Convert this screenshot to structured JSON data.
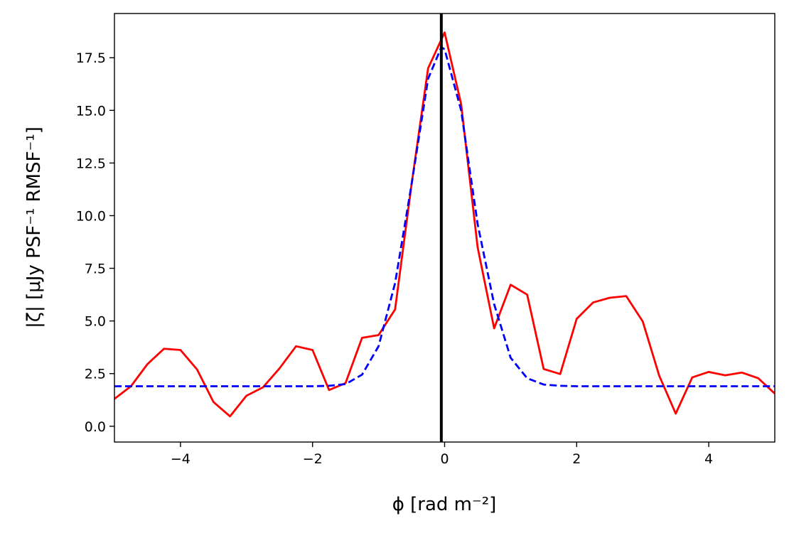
{
  "chart_data": {
    "type": "line",
    "title": "",
    "xlabel": "ϕ [rad m⁻²]",
    "ylabel": "|ζ|  [μJy PSF⁻¹ RMSF⁻¹]",
    "xlim": [
      -5,
      5
    ],
    "ylim": [
      -0.75,
      19.6
    ],
    "grid": false,
    "legend": "none",
    "x_ticks": [
      -4,
      -2,
      0,
      2,
      4
    ],
    "x_tick_labels": [
      "−4",
      "−2",
      "0",
      "2",
      "4"
    ],
    "y_ticks": [
      0,
      2.5,
      5,
      7.5,
      10,
      12.5,
      15,
      17.5
    ],
    "y_tick_labels": [
      "0.0",
      "2.5",
      "5.0",
      "7.5",
      "10.0",
      "12.5",
      "15.0",
      "17.5"
    ],
    "vline": {
      "x": -0.05,
      "color": "#000000"
    },
    "series": [
      {
        "style": "solid",
        "color": "#ff0000",
        "x": [
          -5.0,
          -4.75,
          -4.5,
          -4.25,
          -4.0,
          -3.75,
          -3.5,
          -3.25,
          -3.0,
          -2.75,
          -2.5,
          -2.25,
          -2.0,
          -1.75,
          -1.5,
          -1.25,
          -1.0,
          -0.75,
          -0.5,
          -0.25,
          0.0,
          0.25,
          0.5,
          0.75,
          1.0,
          1.25,
          1.5,
          1.75,
          2.0,
          2.25,
          2.5,
          2.75,
          3.0,
          3.25,
          3.5,
          3.75,
          4.0,
          4.25,
          4.5,
          4.75,
          5.0
        ],
        "y": [
          1.3,
          1.9,
          2.95,
          3.68,
          3.62,
          2.7,
          1.15,
          0.47,
          1.45,
          1.85,
          2.75,
          3.8,
          3.62,
          1.72,
          2.05,
          4.2,
          4.33,
          5.55,
          11.5,
          17.0,
          18.7,
          15.3,
          8.5,
          4.65,
          6.72,
          6.25,
          2.72,
          2.48,
          5.1,
          5.88,
          6.1,
          6.18,
          4.98,
          2.4,
          0.6,
          2.32,
          2.58,
          2.42,
          2.55,
          2.28,
          1.55
        ]
      },
      {
        "style": "dashed",
        "color": "#0000ff",
        "x": [
          -5.0,
          -4.5,
          -4.0,
          -3.5,
          -3.0,
          -2.5,
          -2.0,
          -1.75,
          -1.5,
          -1.25,
          -1.0,
          -0.75,
          -0.5,
          -0.25,
          -0.05,
          0.0,
          0.25,
          0.5,
          0.75,
          1.0,
          1.25,
          1.5,
          1.75,
          2.0,
          2.5,
          3.0,
          3.5,
          4.0,
          4.5,
          5.0
        ],
        "y": [
          1.9,
          1.9,
          1.9,
          1.9,
          1.9,
          1.9,
          1.9,
          1.92,
          2.0,
          2.45,
          3.8,
          6.8,
          11.5,
          16.5,
          18.0,
          17.9,
          15.0,
          9.6,
          5.8,
          3.25,
          2.28,
          1.98,
          1.92,
          1.9,
          1.9,
          1.9,
          1.9,
          1.9,
          1.9,
          1.9
        ]
      }
    ]
  }
}
